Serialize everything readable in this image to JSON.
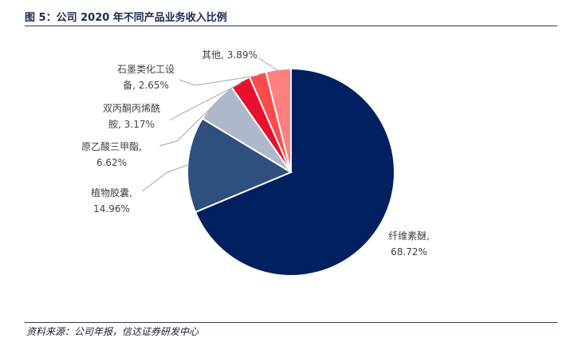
{
  "figure": {
    "title": "图 5：公司 2020 年不同产品业务收入比例",
    "source": "资料来源：公司年报，信达证券研发中心"
  },
  "chart_data": {
    "type": "pie",
    "title": "",
    "slices": [
      {
        "name": "纤维素醚",
        "value": 68.72,
        "label_line1": "纤维素醚,",
        "label_line2": "68.72%",
        "color": "#002060"
      },
      {
        "name": "植物胶囊",
        "value": 14.96,
        "label_line1": "植物胶囊,",
        "label_line2": "14.96%",
        "color": "#2f4f7f"
      },
      {
        "name": "原乙酸三甲酯",
        "value": 6.62,
        "label_line1": "原乙酸三甲酯,",
        "label_line2": "6.62%",
        "color": "#adb9ca"
      },
      {
        "name": "双丙酮丙烯酰胺",
        "value": 3.17,
        "label_line1": "双丙酮丙烯酰",
        "label_line2": "胺, 3.17%",
        "color": "#e8112d"
      },
      {
        "name": "石墨类化工设备",
        "value": 2.65,
        "label_line1": "石墨类化工设",
        "label_line2": "备, 2.65%",
        "color": "#ff4b4b"
      },
      {
        "name": "其他",
        "value": 3.89,
        "label_line1": "其他, 3.89%",
        "label_line2": "",
        "color": "#ff8080"
      }
    ],
    "start_angle_deg": 0,
    "direction": "clockwise",
    "legend": "none"
  }
}
